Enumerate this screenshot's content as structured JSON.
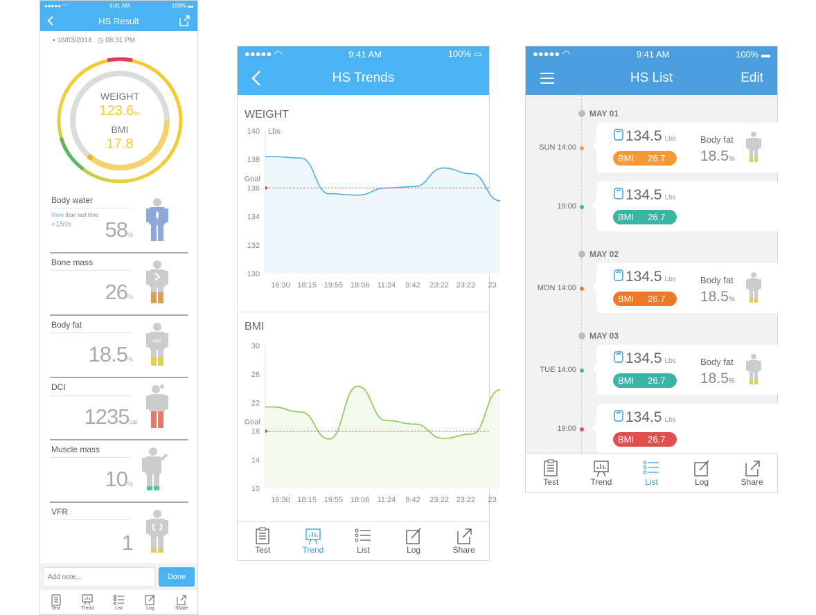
{
  "colors": {
    "blue": "#4bb3f4",
    "list_blue": "#4a9fe0",
    "orange": "#f79a34",
    "orange_dark": "#ef7826",
    "teal": "#3bb3a5",
    "red": "#e24f4f",
    "goal_red": "#e53935",
    "weight_line": "#4db0ec",
    "bmi_line": "#8cc751",
    "yellow": "#f5c930"
  },
  "status": {
    "time": "9:41 AM",
    "battery": "100%"
  },
  "result": {
    "title": "HS Result",
    "date": "18/03/2014",
    "time": "08:31 PM",
    "gauge": {
      "weight_label": "WEIGHT",
      "weight_value": "123.6",
      "weight_unit": "lbs",
      "bmi_label": "BMI",
      "bmi_value": "17.8"
    },
    "metrics": [
      {
        "label": "Body water",
        "sub_more": "More",
        "sub_rest": " than last time",
        "change": "+15%",
        "value": "58",
        "unit": "%"
      },
      {
        "label": "Bone mass",
        "value": "26",
        "unit": "%"
      },
      {
        "label": "Body fat",
        "value": "18.5",
        "unit": "%",
        "badge": "FAT"
      },
      {
        "label": "DCI",
        "value": "1235",
        "unit": "cal"
      },
      {
        "label": "Muscle mass",
        "value": "10",
        "unit": "%"
      },
      {
        "label": "VFR",
        "value": "1",
        "unit": ""
      }
    ],
    "note_placeholder": "Add note...",
    "done_label": "Done"
  },
  "tabs": {
    "test": "Test",
    "trend": "Trend",
    "list": "List",
    "log": "Log",
    "share": "Share"
  },
  "trends": {
    "title": "HS Trends",
    "weight_title": "WEIGHT",
    "bmi_title": "BMI",
    "goal_label": "Goal",
    "weight_unit": "Lbs",
    "x_labels": [
      "16:30",
      "18:15",
      "19:55",
      "18:06",
      "11:24",
      "9:42",
      "23:22",
      "23:22",
      "23"
    ],
    "weight_chart": {
      "yticks": [
        140,
        138,
        136,
        134,
        132,
        130
      ],
      "ylim": [
        130,
        140
      ],
      "goal": 136,
      "points": [
        138.2,
        138.1,
        135.6,
        135.5,
        136.0,
        136.1,
        137.4,
        137.0,
        135.1
      ]
    },
    "bmi_chart": {
      "yticks": [
        30,
        26,
        22,
        18,
        14,
        10
      ],
      "ylim": [
        10,
        30
      ],
      "goal": 18,
      "points": [
        21.4,
        20.7,
        16.9,
        24.3,
        19.5,
        19.0,
        17.0,
        17.6,
        23.8
      ]
    }
  },
  "list": {
    "title": "HS List",
    "edit": "Edit",
    "days": [
      "MAY 01",
      "MAY 02",
      "MAY 03"
    ],
    "entries": [
      {
        "time": "SUN  14:00",
        "weight": "134.5",
        "unit": "Lbs",
        "bmi_label": "BMI",
        "bmi": "26.7",
        "color": "#f79a34",
        "body_fat_label": "Body fat",
        "body_fat": "18.5",
        "bf_unit": "%"
      },
      {
        "time": "19:00",
        "weight": "134.5",
        "unit": "Lbs",
        "bmi_label": "BMI",
        "bmi": "26.7",
        "color": "#3bb3a5"
      },
      {
        "time": "MON  14:00",
        "weight": "134.5",
        "unit": "Lbs",
        "bmi_label": "BMI",
        "bmi": "26.7",
        "color": "#ef7826",
        "body_fat_label": "Body fat",
        "body_fat": "18.5",
        "bf_unit": "%"
      },
      {
        "time": "TUE  14:00",
        "weight": "134.5",
        "unit": "Lbs",
        "bmi_label": "BMI",
        "bmi": "26.7",
        "color": "#3bb3a5",
        "body_fat_label": "Body fat",
        "body_fat": "18.5",
        "bf_unit": "%"
      },
      {
        "time": "19:00",
        "weight": "134.5",
        "unit": "Lbs",
        "bmi_label": "BMI",
        "bmi": "26.7",
        "color": "#e24f4f"
      }
    ]
  }
}
